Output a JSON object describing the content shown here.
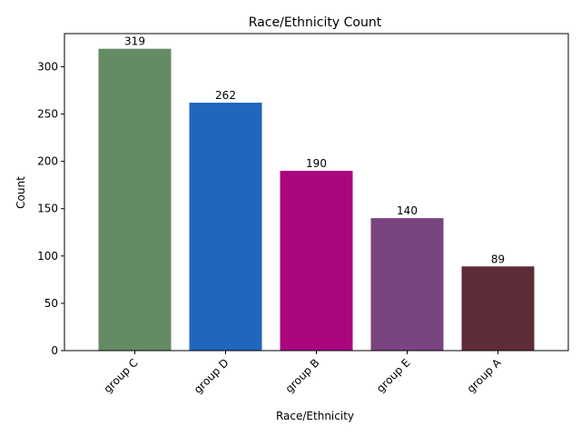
{
  "chart_data": {
    "type": "bar",
    "title": "Race/Ethnicity Count",
    "xlabel": "Race/Ethnicity",
    "ylabel": "Count",
    "categories": [
      "group C",
      "group D",
      "group B",
      "group E",
      "group A"
    ],
    "values": [
      319,
      262,
      190,
      140,
      89
    ],
    "data_labels": [
      "319",
      "262",
      "190",
      "140",
      "89"
    ],
    "colors": [
      "#658b65",
      "#2066bf",
      "#ac067e",
      "#7a4480",
      "#5e2c36"
    ],
    "ylim": [
      0,
      335
    ],
    "yticks": [
      0,
      50,
      100,
      150,
      200,
      250,
      300
    ],
    "grid": false,
    "legend": "none",
    "xtick_rotation": 45
  }
}
